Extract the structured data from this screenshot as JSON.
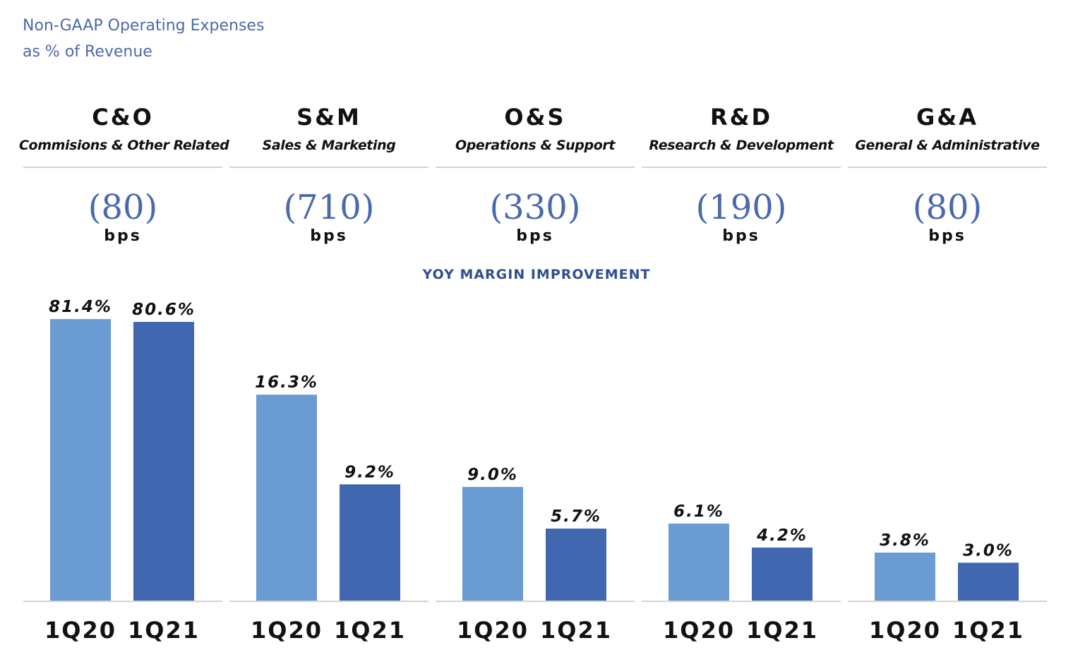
{
  "title": {
    "line1": "Non-GAAP Operating Expenses",
    "line2": "as % of Revenue"
  },
  "subtitle": "YOY MARGIN IMPROVEMENT",
  "colors": {
    "title": "#4a6aa8",
    "bps": "#4869ac",
    "subtitle": "#2f4f8f",
    "1Q20": "#6a9bd3",
    "1Q21": "#4167b0"
  },
  "panels": [
    {
      "abbr": "C&O",
      "name": "Commisions & Other Related",
      "bps": "(80)",
      "unit": "bps"
    },
    {
      "abbr": "S&M",
      "name": "Sales & Marketing",
      "bps": "(710)",
      "unit": "bps"
    },
    {
      "abbr": "O&S",
      "name": "Operations & Support",
      "bps": "(330)",
      "unit": "bps"
    },
    {
      "abbr": "R&D",
      "name": "Research & Development",
      "bps": "(190)",
      "unit": "bps"
    },
    {
      "abbr": "G&A",
      "name": "General & Administrative",
      "bps": "(80)",
      "unit": "bps"
    }
  ],
  "chart_data": {
    "type": "bar",
    "categories": [
      "C&O",
      "S&M",
      "O&S",
      "R&D",
      "G&A"
    ],
    "series": [
      {
        "name": "1Q20",
        "values": [
          81.4,
          16.3,
          9.0,
          6.1,
          3.8
        ],
        "labels": [
          "81.4%",
          "16.3%",
          "9.0%",
          "6.1%",
          "3.8%"
        ]
      },
      {
        "name": "1Q21",
        "values": [
          80.6,
          9.2,
          5.7,
          4.2,
          3.0
        ],
        "labels": [
          "80.6%",
          "9.2%",
          "5.7%",
          "4.2%",
          "3.0%"
        ]
      }
    ],
    "ylabel": "",
    "xlabel": "",
    "grid": false,
    "legend": "none"
  }
}
